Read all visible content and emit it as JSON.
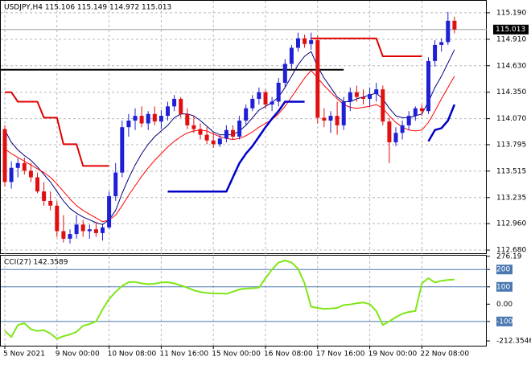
{
  "chart_data": [
    {
      "type": "candlestick",
      "title": "USDJPY,H4  115.106 115.149 114.972 115.013",
      "categories": [
        "5 Nov 2021",
        null,
        null,
        null,
        null,
        null,
        null,
        null,
        "9 Nov 00:00",
        null,
        null,
        null,
        null,
        null,
        null,
        null,
        "10 Nov 08:00",
        null,
        null,
        null,
        null,
        null,
        null,
        null,
        "11 Nov 16:00",
        null,
        null,
        null,
        null,
        null,
        null,
        null,
        "15 Nov 00:00",
        null,
        null,
        null,
        null,
        null,
        null,
        null,
        "16 Nov 08:00",
        null,
        null,
        null,
        null,
        null,
        null,
        null,
        "17 Nov 16:00",
        null,
        null,
        null,
        null,
        null,
        null,
        null,
        "19 Nov 00:00",
        null,
        null,
        null,
        null,
        null,
        null,
        null,
        "22 Nov 08:00",
        null,
        null,
        null,
        null,
        null
      ],
      "open": [
        113.96,
        113.4,
        113.55,
        113.6,
        113.52,
        113.45,
        113.3,
        113.2,
        113.15,
        112.88,
        112.8,
        112.85,
        112.95,
        112.88,
        112.9,
        112.86,
        112.92,
        113.25,
        113.5,
        113.98,
        114.05,
        114.1,
        114.02,
        114.12,
        114.04,
        114.1,
        114.2,
        114.28,
        114.12,
        114.0,
        113.96,
        113.9,
        113.84,
        113.8,
        113.86,
        113.95,
        113.88,
        114.05,
        114.18,
        114.28,
        114.35,
        114.22,
        114.25,
        114.45,
        114.65,
        114.82,
        114.92,
        114.86,
        114.9,
        114.08,
        114.05,
        114.1,
        114.0,
        114.25,
        114.35,
        114.3,
        114.28,
        114.33,
        114.38,
        114.04,
        113.82,
        113.92,
        114.0,
        114.1,
        114.18,
        114.15,
        114.68,
        114.85,
        114.88,
        115.106
      ],
      "high": [
        114.0,
        113.62,
        113.65,
        113.66,
        113.6,
        113.5,
        113.4,
        113.3,
        113.2,
        113.05,
        112.9,
        113.05,
        113.0,
        112.95,
        112.98,
        112.95,
        113.3,
        113.6,
        114.05,
        114.12,
        114.18,
        114.2,
        114.15,
        114.2,
        114.16,
        114.25,
        114.32,
        114.3,
        114.18,
        114.1,
        114.02,
        113.98,
        113.92,
        113.9,
        114.0,
        114.0,
        114.1,
        114.22,
        114.32,
        114.4,
        114.38,
        114.3,
        114.5,
        114.7,
        114.85,
        114.98,
        114.96,
        114.98,
        114.95,
        114.18,
        114.15,
        114.25,
        114.3,
        114.4,
        114.42,
        114.38,
        114.4,
        114.45,
        114.42,
        114.08,
        113.98,
        114.05,
        114.15,
        114.2,
        114.22,
        114.72,
        114.9,
        114.92,
        115.2,
        115.149
      ],
      "low": [
        113.35,
        113.33,
        113.45,
        113.48,
        113.4,
        113.28,
        113.15,
        113.1,
        112.82,
        112.76,
        112.75,
        112.8,
        112.82,
        112.8,
        112.82,
        112.78,
        112.9,
        113.2,
        113.45,
        113.88,
        113.95,
        113.98,
        113.95,
        114.0,
        113.96,
        114.05,
        114.15,
        114.08,
        113.96,
        113.92,
        113.85,
        113.8,
        113.76,
        113.77,
        113.82,
        113.85,
        113.85,
        114.0,
        114.15,
        114.22,
        114.18,
        114.15,
        114.2,
        114.4,
        114.6,
        114.78,
        114.82,
        114.8,
        114.02,
        113.98,
        113.92,
        113.9,
        113.95,
        114.15,
        114.25,
        114.22,
        114.2,
        114.25,
        114.0,
        113.6,
        113.78,
        113.85,
        113.95,
        114.05,
        114.1,
        114.12,
        114.62,
        114.78,
        114.85,
        114.972
      ],
      "close": [
        113.4,
        113.55,
        113.6,
        113.52,
        113.45,
        113.3,
        113.2,
        113.15,
        112.88,
        112.8,
        112.85,
        112.95,
        112.88,
        112.9,
        112.86,
        112.92,
        113.25,
        113.5,
        113.98,
        114.05,
        114.1,
        114.02,
        114.12,
        114.04,
        114.1,
        114.2,
        114.28,
        114.12,
        114.0,
        113.96,
        113.9,
        113.84,
        113.8,
        113.86,
        113.95,
        113.88,
        114.05,
        114.18,
        114.28,
        114.35,
        114.22,
        114.25,
        114.45,
        114.65,
        114.82,
        114.92,
        114.86,
        114.9,
        114.08,
        114.05,
        114.1,
        114.0,
        114.25,
        114.35,
        114.3,
        114.28,
        114.33,
        114.38,
        114.04,
        113.82,
        113.92,
        114.0,
        114.1,
        114.18,
        114.15,
        114.68,
        114.85,
        114.88,
        115.106,
        115.013
      ],
      "up_color": "#1f1fd6",
      "down_color": "#e01010",
      "series": [
        {
          "color": "#000080",
          "width": 1,
          "values": [
            113.95,
            113.82,
            113.74,
            113.68,
            113.63,
            113.56,
            113.48,
            113.4,
            113.3,
            113.2,
            113.12,
            113.07,
            113.03,
            113.0,
            112.97,
            112.95,
            113.0,
            113.1,
            113.28,
            113.44,
            113.58,
            113.7,
            113.8,
            113.88,
            113.94,
            114.0,
            114.08,
            114.12,
            114.12,
            114.1,
            114.05,
            113.99,
            113.93,
            113.9,
            113.9,
            113.9,
            113.94,
            114.0,
            114.08,
            114.16,
            114.2,
            114.24,
            114.3,
            114.4,
            114.52,
            114.64,
            114.73,
            114.78,
            114.62,
            114.5,
            114.4,
            114.3,
            114.25,
            114.25,
            114.28,
            114.3,
            114.32,
            114.34,
            114.28,
            114.18,
            114.1,
            114.08,
            114.08,
            114.1,
            114.12,
            114.25,
            114.4,
            114.52,
            114.66,
            114.8
          ]
        },
        {
          "color": "#ff0000",
          "width": 1,
          "values": [
            113.75,
            113.7,
            113.66,
            113.62,
            113.58,
            113.54,
            113.5,
            113.45,
            113.38,
            113.3,
            113.22,
            113.15,
            113.1,
            113.06,
            113.02,
            112.98,
            113.0,
            113.05,
            113.15,
            113.26,
            113.36,
            113.46,
            113.55,
            113.63,
            113.7,
            113.77,
            113.83,
            113.88,
            113.92,
            113.94,
            113.95,
            113.94,
            113.91,
            113.88,
            113.86,
            113.85,
            113.86,
            113.89,
            113.93,
            113.98,
            114.02,
            114.06,
            114.12,
            114.2,
            114.3,
            114.4,
            114.5,
            114.58,
            114.5,
            114.42,
            114.35,
            114.28,
            114.22,
            114.19,
            114.18,
            114.19,
            114.2,
            114.22,
            114.18,
            114.1,
            114.03,
            113.98,
            113.95,
            113.94,
            113.95,
            114.03,
            114.15,
            114.28,
            114.4,
            114.52
          ]
        },
        {
          "color": "#e00000",
          "width": 2,
          "values": [
            114.35,
            114.35,
            114.25,
            114.25,
            114.25,
            114.25,
            114.08,
            114.08,
            114.08,
            113.8,
            113.8,
            113.8,
            113.57,
            113.57,
            113.57,
            113.57,
            113.57,
            null,
            null,
            null,
            null,
            null,
            null,
            null,
            null,
            null,
            null,
            null,
            null,
            null,
            null,
            null,
            null,
            null,
            null,
            null,
            null,
            null,
            null,
            null,
            null,
            null,
            null,
            null,
            null,
            null,
            null,
            114.92,
            114.92,
            114.92,
            114.92,
            114.92,
            114.92,
            114.92,
            114.92,
            114.92,
            114.92,
            114.92,
            114.73,
            114.73,
            114.73,
            114.73,
            114.73,
            114.73,
            114.73,
            null,
            null,
            null,
            null,
            null
          ]
        },
        {
          "color": "#0000c8",
          "width": 2.5,
          "values": [
            null,
            null,
            null,
            null,
            null,
            null,
            null,
            null,
            null,
            null,
            null,
            null,
            null,
            null,
            null,
            null,
            null,
            null,
            null,
            null,
            null,
            null,
            null,
            null,
            null,
            113.3,
            113.3,
            113.3,
            113.3,
            113.3,
            113.3,
            113.3,
            113.3,
            113.3,
            113.3,
            113.45,
            113.6,
            113.7,
            113.78,
            113.88,
            113.98,
            114.07,
            114.15,
            114.25,
            114.25,
            114.25,
            114.25,
            null,
            null,
            null,
            null,
            null,
            null,
            null,
            null,
            null,
            null,
            null,
            null,
            null,
            null,
            null,
            null,
            null,
            null,
            113.83,
            113.95,
            113.97,
            114.05,
            114.22
          ]
        }
      ],
      "hline": {
        "value": 114.588,
        "color": "#000000"
      },
      "last": {
        "value": 115.013,
        "label": "115.013"
      },
      "ylim": [
        112.638,
        115.317
      ],
      "yticks": [
        {
          "value": 115.19,
          "label": "115.190"
        },
        {
          "value": 114.91,
          "label": "114.910"
        },
        {
          "value": 114.63,
          "label": "114.630"
        },
        {
          "value": 114.35,
          "label": "114.350"
        },
        {
          "value": 114.07,
          "label": "114.070"
        },
        {
          "value": 113.795,
          "label": "113.795"
        },
        {
          "value": 113.515,
          "label": "113.515"
        },
        {
          "value": 113.235,
          "label": "113.235"
        },
        {
          "value": 112.96,
          "label": "112.960"
        },
        {
          "value": 112.68,
          "label": "112.680"
        }
      ],
      "grid": true
    },
    {
      "type": "line",
      "title": "CCI(27) 142.3589",
      "color": "#7fe617",
      "values": [
        -155,
        -190,
        -120,
        -110,
        -145,
        -155,
        -150,
        -170,
        -200,
        -185,
        -175,
        -160,
        -125,
        -115,
        -100,
        -30,
        30,
        70,
        105,
        127,
        128,
        120,
        115,
        118,
        125,
        127,
        120,
        108,
        95,
        80,
        70,
        65,
        62,
        62,
        60,
        72,
        85,
        90,
        92,
        95,
        150,
        200,
        240,
        252,
        240,
        205,
        120,
        -15,
        -22,
        -27,
        -25,
        -22,
        -5,
        -2,
        5,
        10,
        0,
        -40,
        -120,
        -100,
        -75,
        -55,
        -45,
        -40,
        120,
        150,
        125,
        135,
        140,
        142.3589
      ],
      "levels": [
        200,
        100,
        -100
      ],
      "level_color": "#4a78b0",
      "ylim": [
        -240,
        280
      ],
      "yticks": [
        276.19,
        200,
        100,
        {
          "value": 0,
          "label": "0.00"
        },
        -100,
        -212.3546
      ]
    }
  ]
}
